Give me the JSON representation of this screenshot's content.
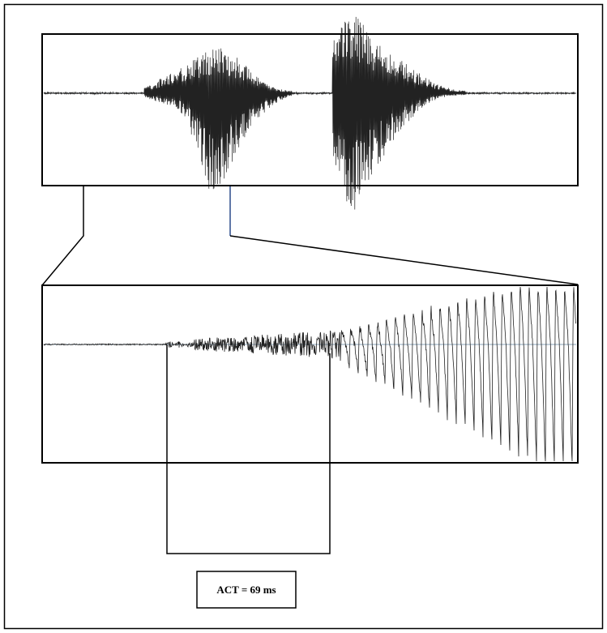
{
  "label": "ACT = 69 ms"
}
